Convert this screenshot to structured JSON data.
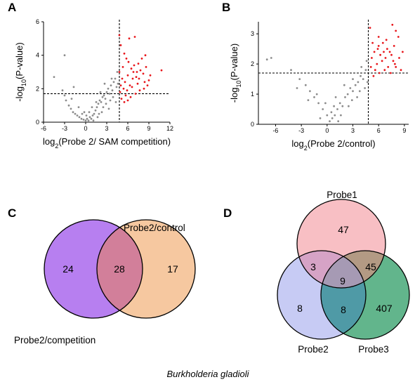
{
  "panels": {
    "A": "A",
    "B": "B",
    "C": "C",
    "D": "D"
  },
  "colors": {
    "gray": "#8c8c8c",
    "red": "#e8161b",
    "purple": "#b77ff0",
    "orange": "#f6c8a0",
    "overlap_cd": "#d27f9a",
    "pink": "#f8bfc4",
    "blue": "#c7cbf4",
    "green": "#62b58c",
    "pinkblue": "#d6a3c6",
    "pinkgreen": "#b39a84",
    "bluegreen": "#4f9aa6",
    "center": "#a69ab4"
  },
  "chart_data": [
    {
      "type": "scatter",
      "panel": "A",
      "ylabel": "-log10(P-value)",
      "xlabel": "log2(Probe 2/ SAM competition)",
      "xlim": [
        -6,
        12
      ],
      "ylim": [
        0,
        6
      ],
      "xticks": [
        -6,
        -3,
        0,
        3,
        6,
        9,
        12
      ],
      "yticks": [
        0,
        2,
        4,
        6
      ],
      "thresholds": {
        "x": 4.8,
        "y": 1.7
      },
      "series": [
        {
          "color": "gray",
          "points": [
            [
              -3,
              4.0
            ],
            [
              -4.5,
              2.7
            ],
            [
              -1.7,
              2.1
            ],
            [
              -3.3,
              1.9
            ],
            [
              -3.0,
              1.6
            ],
            [
              -2.8,
              1.3
            ],
            [
              -2.4,
              1.0
            ],
            [
              -2.1,
              0.8
            ],
            [
              -1.8,
              0.6
            ],
            [
              -1.5,
              0.5
            ],
            [
              -1.2,
              0.4
            ],
            [
              -0.9,
              0.3
            ],
            [
              -0.6,
              0.2
            ],
            [
              -0.3,
              0.15
            ],
            [
              0,
              0.1
            ],
            [
              0.2,
              0.2
            ],
            [
              0.4,
              0.1
            ],
            [
              0.6,
              0.3
            ],
            [
              0.8,
              0.2
            ],
            [
              1.0,
              0.4
            ],
            [
              1.2,
              0.5
            ],
            [
              1.4,
              0.7
            ],
            [
              1.6,
              0.9
            ],
            [
              1.8,
              1.1
            ],
            [
              2.0,
              1.3
            ],
            [
              2.2,
              1.2
            ],
            [
              2.4,
              1.5
            ],
            [
              2.6,
              1.6
            ],
            [
              2.8,
              1.4
            ],
            [
              3.0,
              1.8
            ],
            [
              3.2,
              2.0
            ],
            [
              3.4,
              1.7
            ],
            [
              3.6,
              2.2
            ],
            [
              3.8,
              1.9
            ],
            [
              4.0,
              2.4
            ],
            [
              4.2,
              2.6
            ],
            [
              4.4,
              2.1
            ],
            [
              4.6,
              2.3
            ],
            [
              1.5,
              1.2
            ],
            [
              2.5,
              0.9
            ],
            [
              3.5,
              1.3
            ],
            [
              0.5,
              0.6
            ],
            [
              -0.5,
              0.5
            ],
            [
              1.9,
              0.5
            ],
            [
              2.9,
              1.1
            ],
            [
              3.9,
              1.5
            ],
            [
              4.5,
              3.0
            ],
            [
              4.3,
              1.2
            ],
            [
              3.3,
              0.8
            ],
            [
              0.9,
              0.9
            ],
            [
              -2.0,
              1.4
            ],
            [
              -1.0,
              0.9
            ],
            [
              2.1,
              1.8
            ],
            [
              2.7,
              2.3
            ],
            [
              3.7,
              2.6
            ],
            [
              1.1,
              0.1
            ],
            [
              0.1,
              0.4
            ],
            [
              -0.2,
              0.6
            ],
            [
              1.7,
              0.3
            ],
            [
              2.3,
              0.6
            ]
          ]
        },
        {
          "color": "red",
          "points": [
            [
              4.8,
              5.2
            ],
            [
              5.5,
              4.1
            ],
            [
              6.2,
              5.0
            ],
            [
              5.0,
              4.6
            ],
            [
              7.0,
              5.1
            ],
            [
              5.8,
              3.8
            ],
            [
              6.5,
              3.2
            ],
            [
              7.5,
              3.5
            ],
            [
              8.0,
              3.8
            ],
            [
              8.5,
              4.0
            ],
            [
              6.0,
              2.8
            ],
            [
              5.2,
              2.6
            ],
            [
              5.6,
              2.4
            ],
            [
              6.8,
              3.0
            ],
            [
              7.2,
              2.7
            ],
            [
              7.8,
              3.1
            ],
            [
              8.2,
              2.9
            ],
            [
              6.3,
              2.2
            ],
            [
              5.4,
              2.0
            ],
            [
              5.9,
              1.9
            ],
            [
              6.6,
              2.1
            ],
            [
              7.4,
              2.3
            ],
            [
              8.6,
              3.3
            ],
            [
              9.0,
              2.5
            ],
            [
              10.8,
              3.1
            ],
            [
              4.9,
              1.8
            ],
            [
              5.1,
              1.4
            ],
            [
              5.7,
              1.6
            ],
            [
              6.4,
              1.5
            ],
            [
              7.1,
              1.7
            ],
            [
              7.7,
              1.9
            ],
            [
              8.3,
              2.0
            ],
            [
              8.8,
              2.2
            ],
            [
              4.8,
              3.0
            ],
            [
              5.3,
              3.3
            ],
            [
              6.1,
              3.6
            ],
            [
              6.9,
              3.4
            ],
            [
              7.6,
              2.6
            ],
            [
              8.4,
              2.4
            ],
            [
              9.2,
              2.8
            ],
            [
              5.0,
              2.2
            ],
            [
              6.7,
              2.6
            ],
            [
              7.3,
              3.0
            ],
            [
              5.5,
              1.2
            ],
            [
              6.0,
              1.3
            ]
          ]
        }
      ]
    },
    {
      "type": "scatter",
      "panel": "B",
      "ylabel": "-log10(P-value)",
      "xlabel": "log2(Probe 2/control)",
      "xlim": [
        -8,
        9.5
      ],
      "ylim": [
        0,
        3.4
      ],
      "xticks": [
        -6,
        -3,
        0,
        3,
        6,
        9
      ],
      "yticks": [
        0,
        1,
        2,
        3
      ],
      "thresholds": {
        "x": 4.8,
        "y": 1.7
      },
      "series": [
        {
          "color": "gray",
          "points": [
            [
              -7.0,
              2.15
            ],
            [
              -6.5,
              2.2
            ],
            [
              -4.2,
              1.8
            ],
            [
              -3.2,
              1.5
            ],
            [
              -2.5,
              1.3
            ],
            [
              -2.0,
              1.1
            ],
            [
              -1.5,
              0.9
            ],
            [
              -1.0,
              0.7
            ],
            [
              -0.5,
              0.5
            ],
            [
              0,
              0.3
            ],
            [
              0.3,
              0.1
            ],
            [
              0.6,
              0.2
            ],
            [
              0.9,
              0.3
            ],
            [
              1.2,
              0.5
            ],
            [
              1.5,
              0.7
            ],
            [
              1.8,
              0.6
            ],
            [
              2.1,
              0.9
            ],
            [
              2.4,
              1.0
            ],
            [
              2.7,
              1.2
            ],
            [
              3.0,
              1.1
            ],
            [
              3.3,
              1.3
            ],
            [
              3.6,
              1.4
            ],
            [
              3.9,
              1.6
            ],
            [
              4.2,
              1.5
            ],
            [
              4.5,
              1.8
            ],
            [
              4.6,
              2.1
            ],
            [
              4.4,
              1.2
            ],
            [
              3.5,
              0.9
            ],
            [
              2.5,
              0.6
            ],
            [
              1.6,
              0.3
            ],
            [
              0.8,
              0.6
            ],
            [
              -0.2,
              0.7
            ],
            [
              -1.2,
              1.0
            ],
            [
              -2.2,
              0.8
            ],
            [
              2.0,
              1.3
            ],
            [
              3.0,
              1.5
            ],
            [
              4.0,
              1.9
            ],
            [
              1.0,
              0.9
            ],
            [
              -0.8,
              0.2
            ],
            [
              0.5,
              0.4
            ],
            [
              3.8,
              1.1
            ],
            [
              4.7,
              1.4
            ],
            [
              2.9,
              0.8
            ],
            [
              1.3,
              0.1
            ],
            [
              -3.5,
              1.2
            ]
          ]
        },
        {
          "color": "red",
          "points": [
            [
              5.0,
              3.2
            ],
            [
              7.6,
              3.3
            ],
            [
              8.0,
              3.1
            ],
            [
              8.3,
              2.9
            ],
            [
              6.0,
              2.6
            ],
            [
              6.5,
              2.7
            ],
            [
              7.0,
              2.5
            ],
            [
              5.5,
              2.4
            ],
            [
              6.2,
              2.3
            ],
            [
              6.8,
              2.2
            ],
            [
              7.3,
              2.4
            ],
            [
              7.8,
              2.6
            ],
            [
              5.2,
              2.2
            ],
            [
              5.8,
              2.0
            ],
            [
              6.4,
              2.1
            ],
            [
              7.1,
              1.9
            ],
            [
              7.7,
              2.1
            ],
            [
              8.4,
              2.2
            ],
            [
              8.8,
              2.4
            ],
            [
              5.1,
              1.9
            ],
            [
              5.6,
              1.8
            ],
            [
              6.1,
              1.7
            ],
            [
              6.7,
              1.8
            ],
            [
              7.4,
              1.7
            ],
            [
              8.0,
              1.9
            ],
            [
              5.3,
              2.7
            ],
            [
              6.0,
              2.9
            ],
            [
              6.9,
              2.8
            ],
            [
              5.4,
              1.6
            ],
            [
              7.9,
              2.0
            ],
            [
              8.6,
              1.8
            ],
            [
              5.9,
              2.5
            ],
            [
              6.6,
              2.4
            ],
            [
              7.5,
              2.3
            ]
          ]
        }
      ]
    }
  ],
  "venn_c": {
    "left_only": "24",
    "overlap": "28",
    "right_only": "17",
    "label_right": "Probe2/control",
    "label_left": "Probe2/competition"
  },
  "venn_d": {
    "label_top": "Probe1",
    "label_left": "Probe2",
    "label_right": "Probe3",
    "p1_only": "47",
    "p1_p2": "3",
    "p1_p3": "45",
    "all": "9",
    "p2_only": "8",
    "p2_p3": "8",
    "p3_only": "407"
  },
  "caption": "Burkholderia gladioli"
}
